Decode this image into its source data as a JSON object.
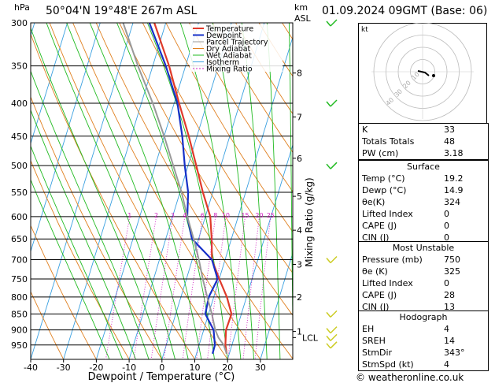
{
  "header": {
    "pressure_unit": "hPa",
    "location": "50°04'N 19°48'E 267m ASL",
    "km_unit": "km",
    "asl": "ASL",
    "datetime": "01.09.2024 09GMT (Base: 06)"
  },
  "chart_data": {
    "type": "skew-t",
    "xlabel": "Dewpoint / Temperature (°C)",
    "ylabel": "Mixing Ratio (g/kg)",
    "x_ticks": [
      -40,
      -30,
      -20,
      -10,
      0,
      10,
      20,
      30
    ],
    "pressure_levels": [
      300,
      350,
      400,
      450,
      500,
      550,
      600,
      650,
      700,
      750,
      800,
      850,
      900,
      950
    ],
    "altitude_km": [
      {
        "km": "8",
        "p": 359
      },
      {
        "km": "7",
        "p": 420
      },
      {
        "km": "6",
        "p": 487
      },
      {
        "km": "5",
        "p": 558
      },
      {
        "km": "4",
        "p": 630
      },
      {
        "km": "3",
        "p": 712
      },
      {
        "km": "2",
        "p": 800
      },
      {
        "km": "1",
        "p": 905
      },
      {
        "km": "LCL",
        "p": 925
      }
    ],
    "mixing_ratio_labels": [
      "1",
      "2",
      "3",
      "4",
      "6",
      "8",
      "10",
      "15",
      "20",
      "25"
    ],
    "mixing_ratio_values": [
      1,
      2,
      3,
      4,
      6,
      8,
      10,
      15,
      20,
      25
    ],
    "legend": [
      "Temperature",
      "Dewpoint",
      "Parcel Trajectory",
      "Dry Adiabat",
      "Wet Adiabat",
      "Isotherm",
      "Mixing Ratio"
    ],
    "series": [
      {
        "name": "Temperature",
        "color": "#e03a2a",
        "points": [
          [
            19.2,
            980
          ],
          [
            18.0,
            950
          ],
          [
            16.8,
            900
          ],
          [
            17.0,
            850
          ],
          [
            14.0,
            800
          ],
          [
            10.0,
            750
          ],
          [
            6.0,
            700
          ],
          [
            4.0,
            650
          ],
          [
            1.5,
            600
          ],
          [
            -3.0,
            550
          ],
          [
            -7.5,
            500
          ],
          [
            -12.5,
            450
          ],
          [
            -18.5,
            400
          ],
          [
            -25.0,
            350
          ],
          [
            -33.5,
            300
          ]
        ]
      },
      {
        "name": "Dewpoint",
        "color": "#1530c8",
        "points": [
          [
            14.9,
            980
          ],
          [
            14.8,
            950
          ],
          [
            13.0,
            900
          ],
          [
            9.0,
            850
          ],
          [
            8.5,
            800
          ],
          [
            9.5,
            750
          ],
          [
            6.0,
            700
          ],
          [
            -2.0,
            650
          ],
          [
            -5.5,
            600
          ],
          [
            -7.5,
            550
          ],
          [
            -11.0,
            500
          ],
          [
            -14.5,
            450
          ],
          [
            -19.0,
            400
          ],
          [
            -26.0,
            350
          ],
          [
            -35.0,
            300
          ]
        ]
      },
      {
        "name": "Parcel Trajectory",
        "color": "#999999",
        "points": [
          [
            19.2,
            980
          ],
          [
            17.5,
            950
          ],
          [
            15.2,
            925
          ],
          [
            13.5,
            900
          ],
          [
            11.0,
            850
          ],
          [
            8.0,
            800
          ],
          [
            5.0,
            750
          ],
          [
            2.0,
            700
          ],
          [
            -1.5,
            650
          ],
          [
            -5.5,
            600
          ],
          [
            -9.5,
            550
          ],
          [
            -14.5,
            500
          ],
          [
            -20.0,
            450
          ],
          [
            -26.5,
            400
          ],
          [
            -34.5,
            350
          ],
          [
            -43.0,
            300
          ]
        ]
      }
    ],
    "wind_barbs": [
      {
        "p": 300,
        "color": "#22bb22"
      },
      {
        "p": 400,
        "color": "#22bb22"
      },
      {
        "p": 500,
        "color": "#22bb22"
      },
      {
        "p": 700,
        "color": "#cccc22"
      },
      {
        "p": 850,
        "color": "#cccc22"
      },
      {
        "p": 900,
        "color": "#cccc22"
      },
      {
        "p": 925,
        "color": "#cccc22"
      },
      {
        "p": 950,
        "color": "#cccc22"
      }
    ]
  },
  "hodograph": {
    "title": "kt",
    "ring_labels": [
      "10",
      "20",
      "30",
      "40"
    ]
  },
  "indices": {
    "general": [
      {
        "label": "K",
        "value": "33"
      },
      {
        "label": "Totals Totals",
        "value": "48"
      },
      {
        "label": "PW (cm)",
        "value": "3.18"
      }
    ],
    "surface": {
      "title": "Surface",
      "rows": [
        {
          "label": "Temp (°C)",
          "value": "19.2"
        },
        {
          "label": "Dewp (°C)",
          "value": "14.9"
        },
        {
          "label": "θe(K)",
          "value": "324"
        },
        {
          "label": "Lifted Index",
          "value": "0"
        },
        {
          "label": "CAPE (J)",
          "value": "0"
        },
        {
          "label": "CIN (J)",
          "value": "0"
        }
      ]
    },
    "most_unstable": {
      "title": "Most Unstable",
      "rows": [
        {
          "label": "Pressure (mb)",
          "value": "750"
        },
        {
          "label": "θe (K)",
          "value": "325"
        },
        {
          "label": "Lifted Index",
          "value": "0"
        },
        {
          "label": "CAPE (J)",
          "value": "28"
        },
        {
          "label": "CIN (J)",
          "value": "13"
        }
      ]
    },
    "hodograph_table": {
      "title": "Hodograph",
      "rows": [
        {
          "label": "EH",
          "value": "4"
        },
        {
          "label": "SREH",
          "value": "14"
        },
        {
          "label": "StmDir",
          "value": "343°"
        },
        {
          "label": "StmSpd (kt)",
          "value": "4"
        }
      ]
    }
  },
  "footer": {
    "copyright": "© weatheronline.co.uk"
  }
}
